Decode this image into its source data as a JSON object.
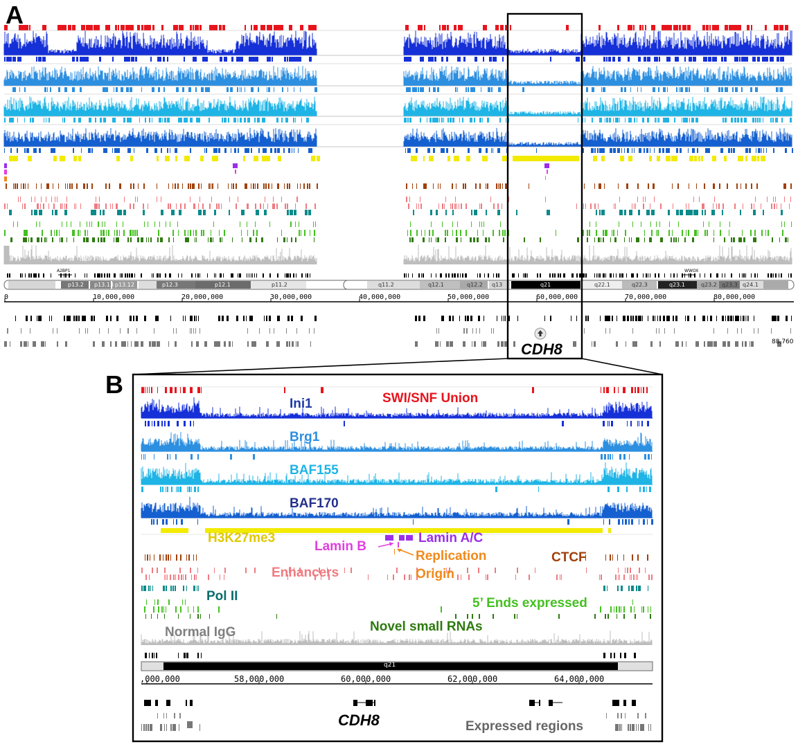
{
  "panel_a": {
    "letter": "A",
    "gene_label": "CDH8",
    "gene_markers": [
      "A2BP1",
      "WWOX"
    ],
    "end_label": "88,760",
    "bands": [
      "p13.2",
      "p13.13",
      "p13.12",
      "p12.3",
      "p12.1",
      "p11.2",
      "q11.2",
      "q12.1",
      "q12.2",
      "q13",
      "q21",
      "q22.1",
      "q22.3",
      "q23.1",
      "q23.2",
      "q23.3",
      "q24.1"
    ],
    "ticks": [
      "0",
      "10,000,000",
      "20,000,000",
      "30,000,000",
      "40,000,000",
      "50,000,000",
      "60,000,000",
      "70,000,000",
      "80,000,000"
    ]
  },
  "panel_b": {
    "letter": "B",
    "band_label": "q21",
    "ticks": [
      ",000,000",
      "58,000,000",
      "60,000,000",
      "62,000,000",
      "64,000,000"
    ],
    "gene_label": "CDH8",
    "labels": {
      "swisnf": "SWI/SNF Union",
      "ini1": "Ini1",
      "brg1": "Brg1",
      "baf155": "BAF155",
      "baf170": "BAF170",
      "h3k27me3": "H3K27me3",
      "laminb": "Lamin B",
      "laminac": "Lamin A/C",
      "replication": "Replication",
      "origin": "Origin",
      "ctcf": "CTCF",
      "enhancers": "Enhancers",
      "pol2": "Pol II",
      "fiveends": "5’ Ends expressed",
      "igg": "Normal IgG",
      "novel": "Novel small RNAs",
      "expressed": "Expressed regions"
    }
  },
  "colors": {
    "swisnf": "#e8141c",
    "ini1": "#1630d8",
    "brg1": "#2d8fe0",
    "baf155": "#1fb4e6",
    "baf170": "#1560d0",
    "h3k27me3": "#f2ea00",
    "h3k27me3_text": "#e0c800",
    "lamin_a": "#9b30e8",
    "lamin_b": "#e040e0",
    "origin": "#f08a1a",
    "ctcf": "#a0400a",
    "enhancers": "#f07a80",
    "pol2": "#0a8a8a",
    "fiveends": "#44c020",
    "novel": "#2e7a10",
    "igg": "#bdbdbd",
    "igg_text": "#808080",
    "ini1_text": "#1e3aa8",
    "baf170_text": "#23308c",
    "pol2_text": "#0a6e6e",
    "novel_text": "#2e7a10",
    "expressed_text": "#666666"
  }
}
